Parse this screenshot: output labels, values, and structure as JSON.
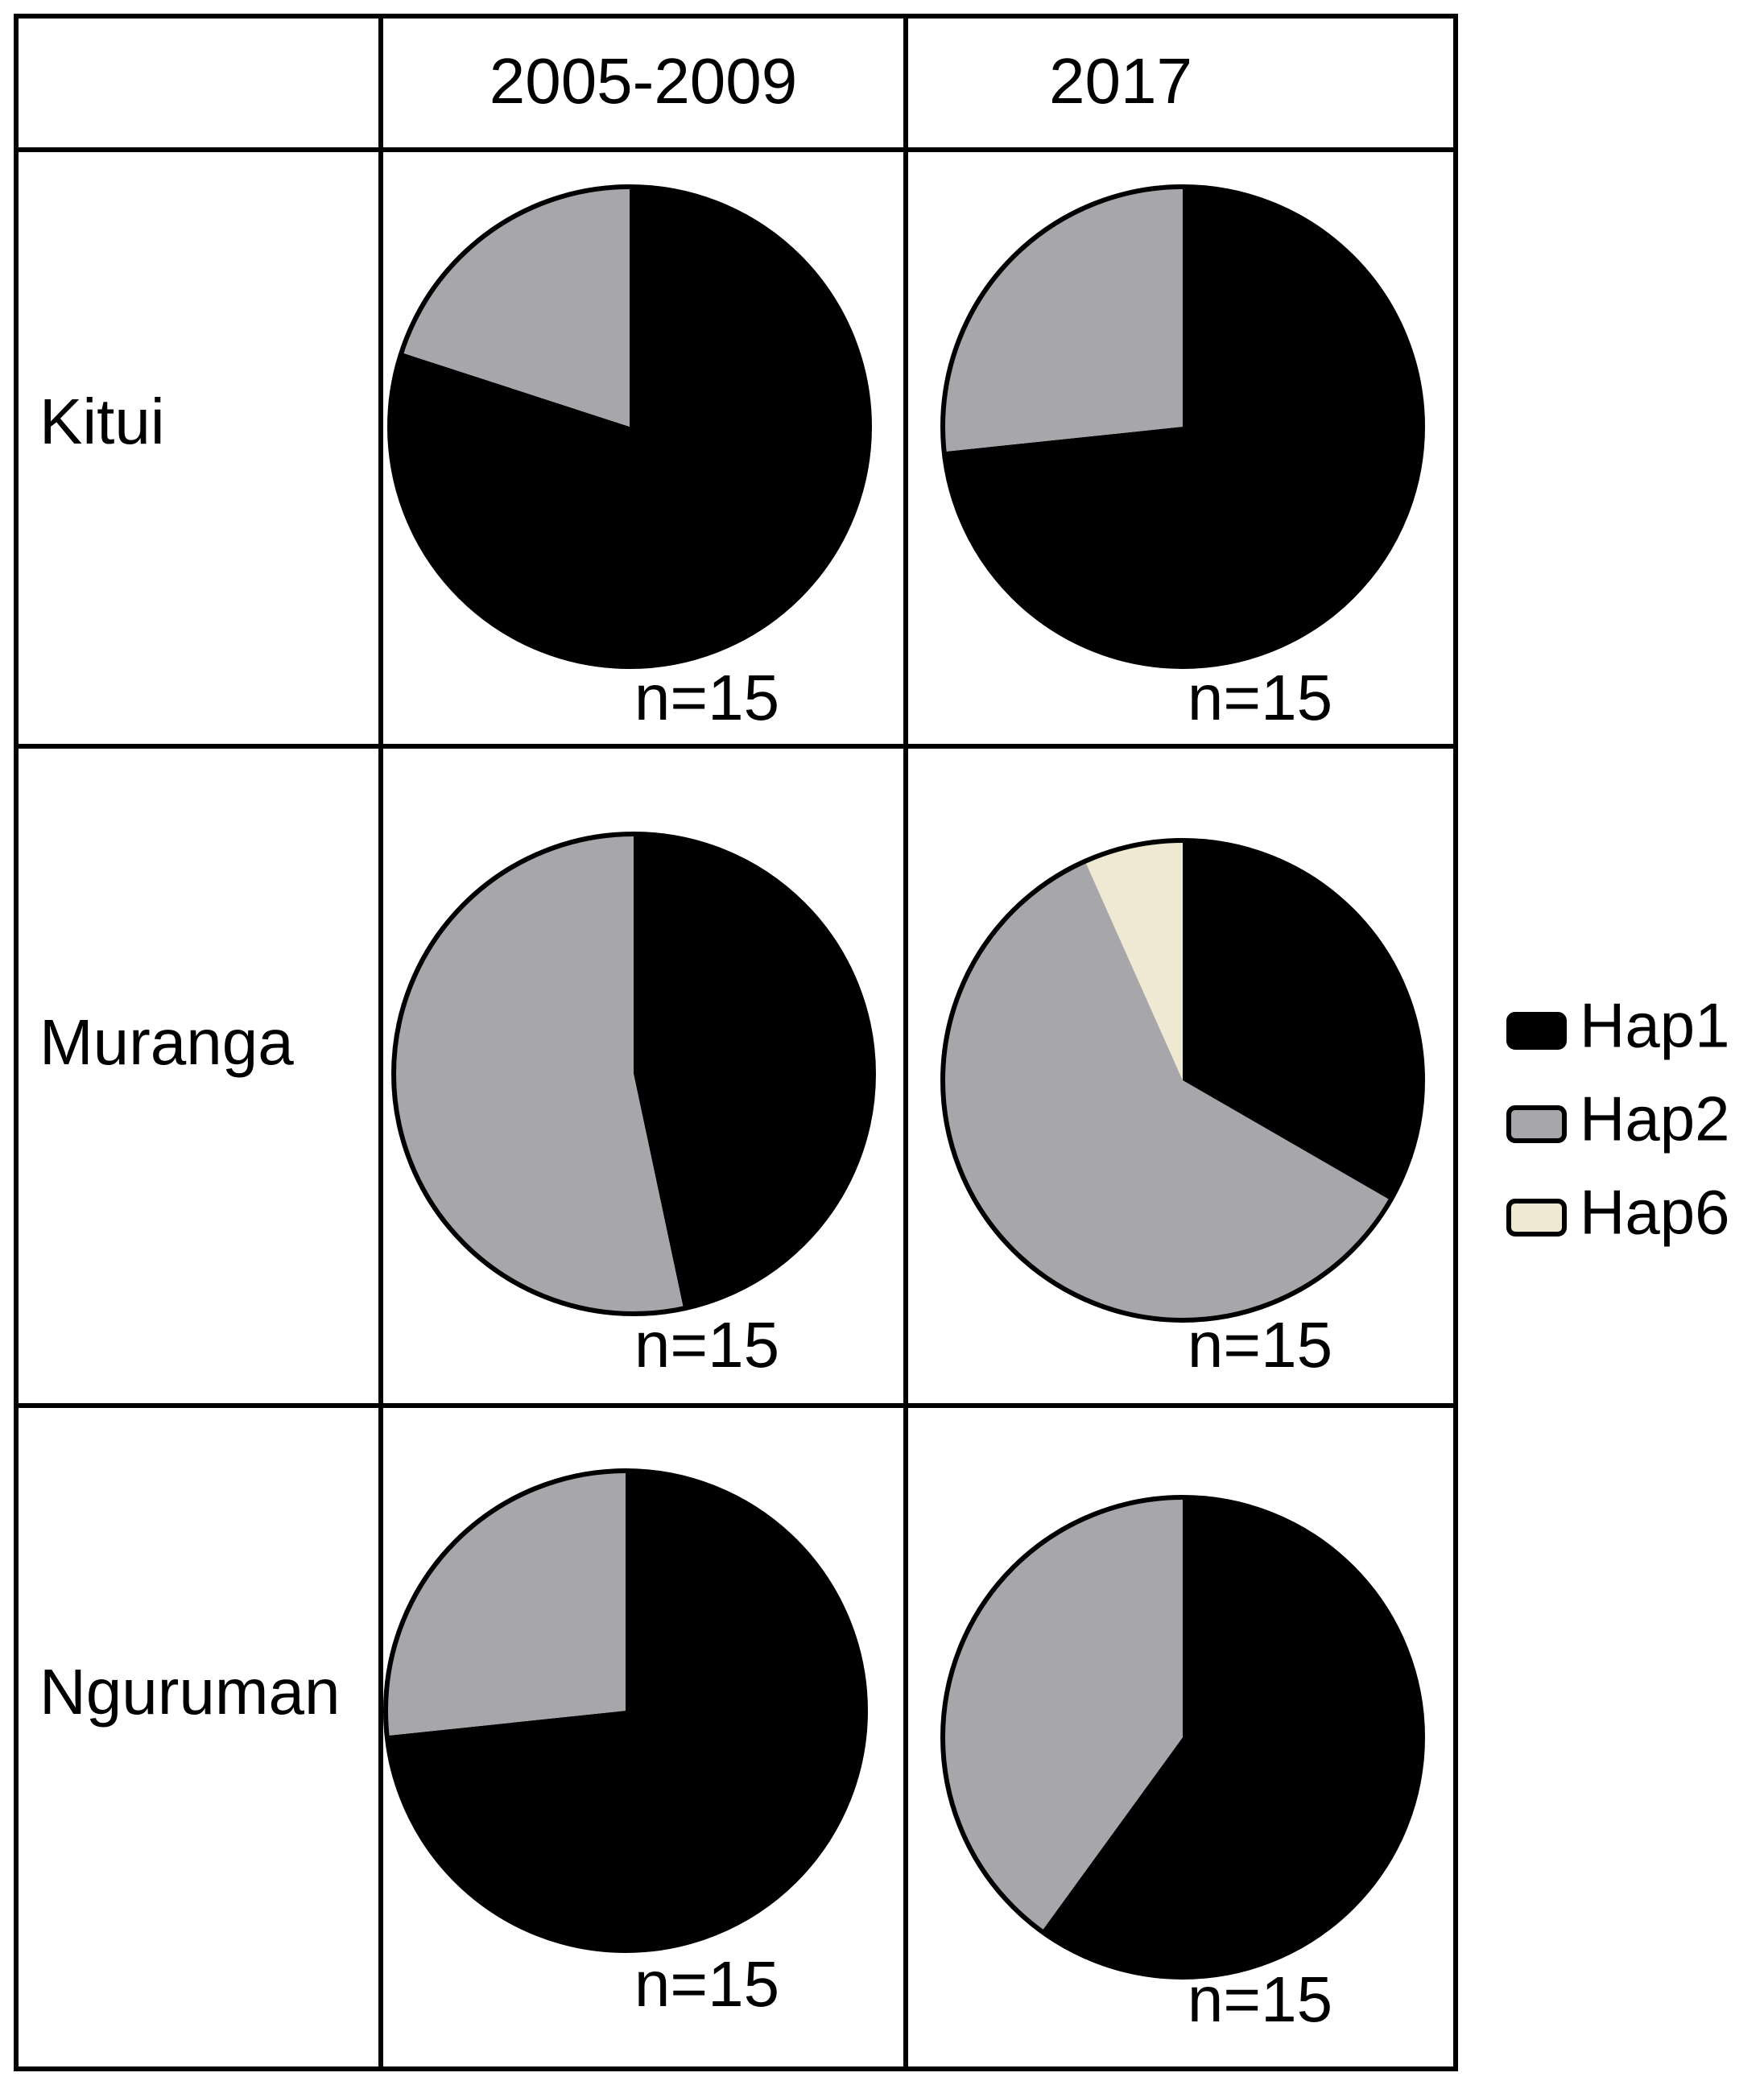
{
  "columns": [
    "2005-2009",
    "2017"
  ],
  "rows": [
    "Kitui",
    "Muranga",
    "Nguruman"
  ],
  "legend": {
    "items": [
      {
        "name": "Hap1",
        "color": "#000000"
      },
      {
        "name": "Hap2",
        "color": "#a7a6ab"
      },
      {
        "name": "Hap6",
        "color": "#efe8d2"
      }
    ]
  },
  "chart_data": [
    {
      "type": "pie",
      "values": [
        12,
        3,
        0
      ],
      "annotation": "n=15"
    },
    {
      "type": "pie",
      "values": [
        11,
        4,
        0
      ],
      "annotation": "n=15"
    },
    {
      "type": "pie",
      "values": [
        7,
        8,
        0
      ],
      "annotation": "n=15"
    },
    {
      "type": "pie",
      "values": [
        5,
        9,
        1
      ],
      "annotation": "n=15"
    },
    {
      "type": "pie",
      "values": [
        11,
        4,
        0
      ],
      "annotation": "n=15"
    },
    {
      "type": "pie",
      "values": [
        9,
        6,
        0
      ],
      "annotation": "n=15"
    }
  ]
}
